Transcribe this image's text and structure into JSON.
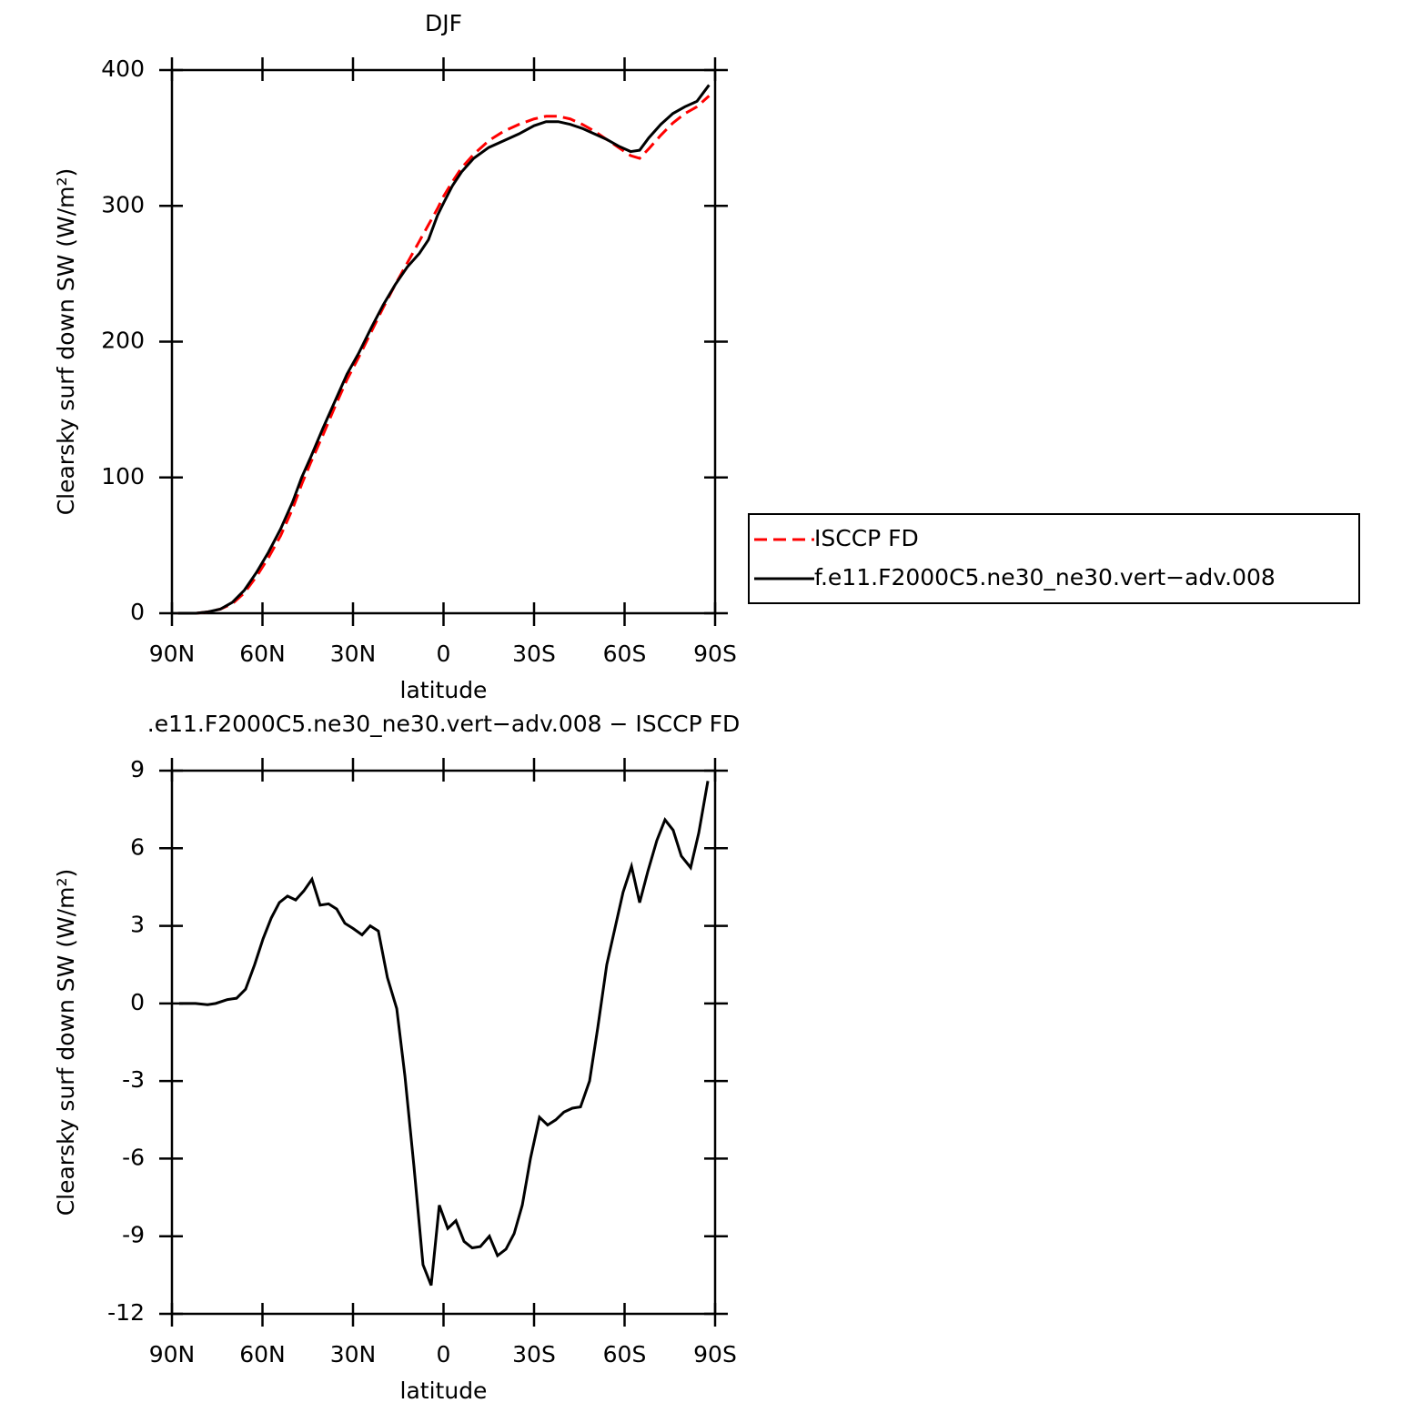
{
  "chart_data": [
    {
      "type": "line",
      "title": "DJF",
      "xlabel": "latitude",
      "ylabel": "Clearsky surf down SW (W/m²)",
      "xlim": [
        90,
        -90
      ],
      "xticks": [
        {
          "value": 90,
          "label": "90N"
        },
        {
          "value": 60,
          "label": "60N"
        },
        {
          "value": 30,
          "label": "30N"
        },
        0,
        {
          "value": -30,
          "label": "30S"
        },
        {
          "value": -60,
          "label": "60S"
        },
        {
          "value": -90,
          "label": "90S"
        }
      ],
      "ylim": [
        0,
        400
      ],
      "yticks": [
        0,
        100,
        200,
        300,
        400
      ],
      "legend": "right",
      "x": [
        88,
        82,
        78,
        74,
        70,
        66,
        62,
        58,
        54,
        50,
        47,
        44,
        40,
        36,
        32,
        28,
        24,
        20,
        16,
        12,
        8,
        5,
        2,
        0,
        -3,
        -6,
        -10,
        -15,
        -20,
        -25,
        -30,
        -34,
        -38,
        -42,
        -46,
        -50,
        -54,
        -58,
        -62,
        -65,
        -68,
        -72,
        -76,
        -80,
        -84,
        -88
      ],
      "series": [
        {
          "name": "ISCCP FD",
          "color": "#ff0000",
          "dashed": true,
          "values": [
            0,
            0,
            1,
            3,
            7,
            15,
            27,
            41,
            57,
            77,
            95,
            111,
            131,
            152,
            172,
            189,
            207,
            225,
            242,
            258,
            274,
            286,
            298,
            307,
            318,
            328,
            338,
            348,
            355,
            360,
            364,
            366,
            366,
            364,
            360,
            355,
            349,
            343,
            337,
            335,
            342,
            352,
            361,
            368,
            373,
            381
          ]
        },
        {
          "name": "f.e11.F2000C5.ne30_ne30.vert−adv.008",
          "color": "#000000",
          "dashed": false,
          "values": [
            0,
            0,
            1,
            3,
            8,
            17,
            30,
            45,
            62,
            82,
            100,
            115,
            136,
            156,
            176,
            192,
            210,
            227,
            242,
            255,
            265,
            275,
            293,
            302,
            315,
            325,
            335,
            343,
            348,
            353,
            359,
            362,
            362,
            360,
            357,
            353,
            349,
            344,
            340,
            341,
            350,
            360,
            368,
            373,
            377,
            389
          ]
        }
      ]
    },
    {
      "type": "line",
      "title": ".e11.F2000C5.ne30_ne30.vert−adv.008 − ISCCP FD",
      "xlabel": "latitude",
      "ylabel": "Clearsky surf down SW (W/m²)",
      "xlim": [
        90,
        -90
      ],
      "xticks": [
        {
          "value": 90,
          "label": "90N"
        },
        {
          "value": 60,
          "label": "60N"
        },
        {
          "value": 30,
          "label": "30N"
        },
        0,
        {
          "value": -30,
          "label": "30S"
        },
        {
          "value": -60,
          "label": "60S"
        },
        {
          "value": -90,
          "label": "90S"
        }
      ],
      "ylim": [
        -12,
        9
      ],
      "yticks": [
        -12,
        -9,
        -6,
        -3,
        0,
        3,
        6,
        9
      ],
      "x": [
        87.6,
        82.2,
        78.2,
        75.5,
        71.6,
        68.6,
        65.6,
        62.6,
        59.8,
        57.1,
        54.4,
        51.7,
        49.0,
        46.3,
        43.6,
        40.9,
        38.1,
        35.4,
        32.7,
        30.0,
        27.0,
        24.3,
        21.6,
        18.6,
        15.5,
        12.8,
        9.8,
        6.8,
        4.1,
        1.4,
        -1.4,
        -4.1,
        -6.8,
        -9.5,
        -12.2,
        -15.2,
        -17.9,
        -20.7,
        -23.4,
        -26.1,
        -28.8,
        -31.8,
        -34.5,
        -37.2,
        -39.9,
        -42.7,
        -45.4,
        -48.4,
        -51.1,
        -54.1,
        -56.8,
        -59.5,
        -62.3,
        -65.0,
        -67.7,
        -70.7,
        -73.4,
        -76.1,
        -78.8,
        -81.9,
        -84.6,
        -87.6
      ],
      "series": [
        {
          "color": "#000000",
          "dashed": false,
          "values": [
            0,
            0,
            -0.05,
            0,
            0.15,
            0.2,
            0.55,
            1.5,
            2.5,
            3.3,
            3.9,
            4.15,
            4.0,
            4.35,
            4.8,
            3.8,
            3.85,
            3.65,
            3.1,
            2.9,
            2.65,
            3.0,
            2.8,
            1.0,
            -0.2,
            -2.8,
            -6.3,
            -10.1,
            -10.9,
            -7.8,
            -8.7,
            -8.4,
            -9.2,
            -9.45,
            -9.4,
            -9.0,
            -9.75,
            -9.5,
            -8.9,
            -7.8,
            -6.0,
            -4.4,
            -4.7,
            -4.5,
            -4.2,
            -4.05,
            -4.0,
            -3.0,
            -0.95,
            1.5,
            2.9,
            4.3,
            5.3,
            3.9,
            5.1,
            6.3,
            7.1,
            6.7,
            5.7,
            5.25,
            6.6,
            8.6
          ]
        }
      ]
    }
  ]
}
